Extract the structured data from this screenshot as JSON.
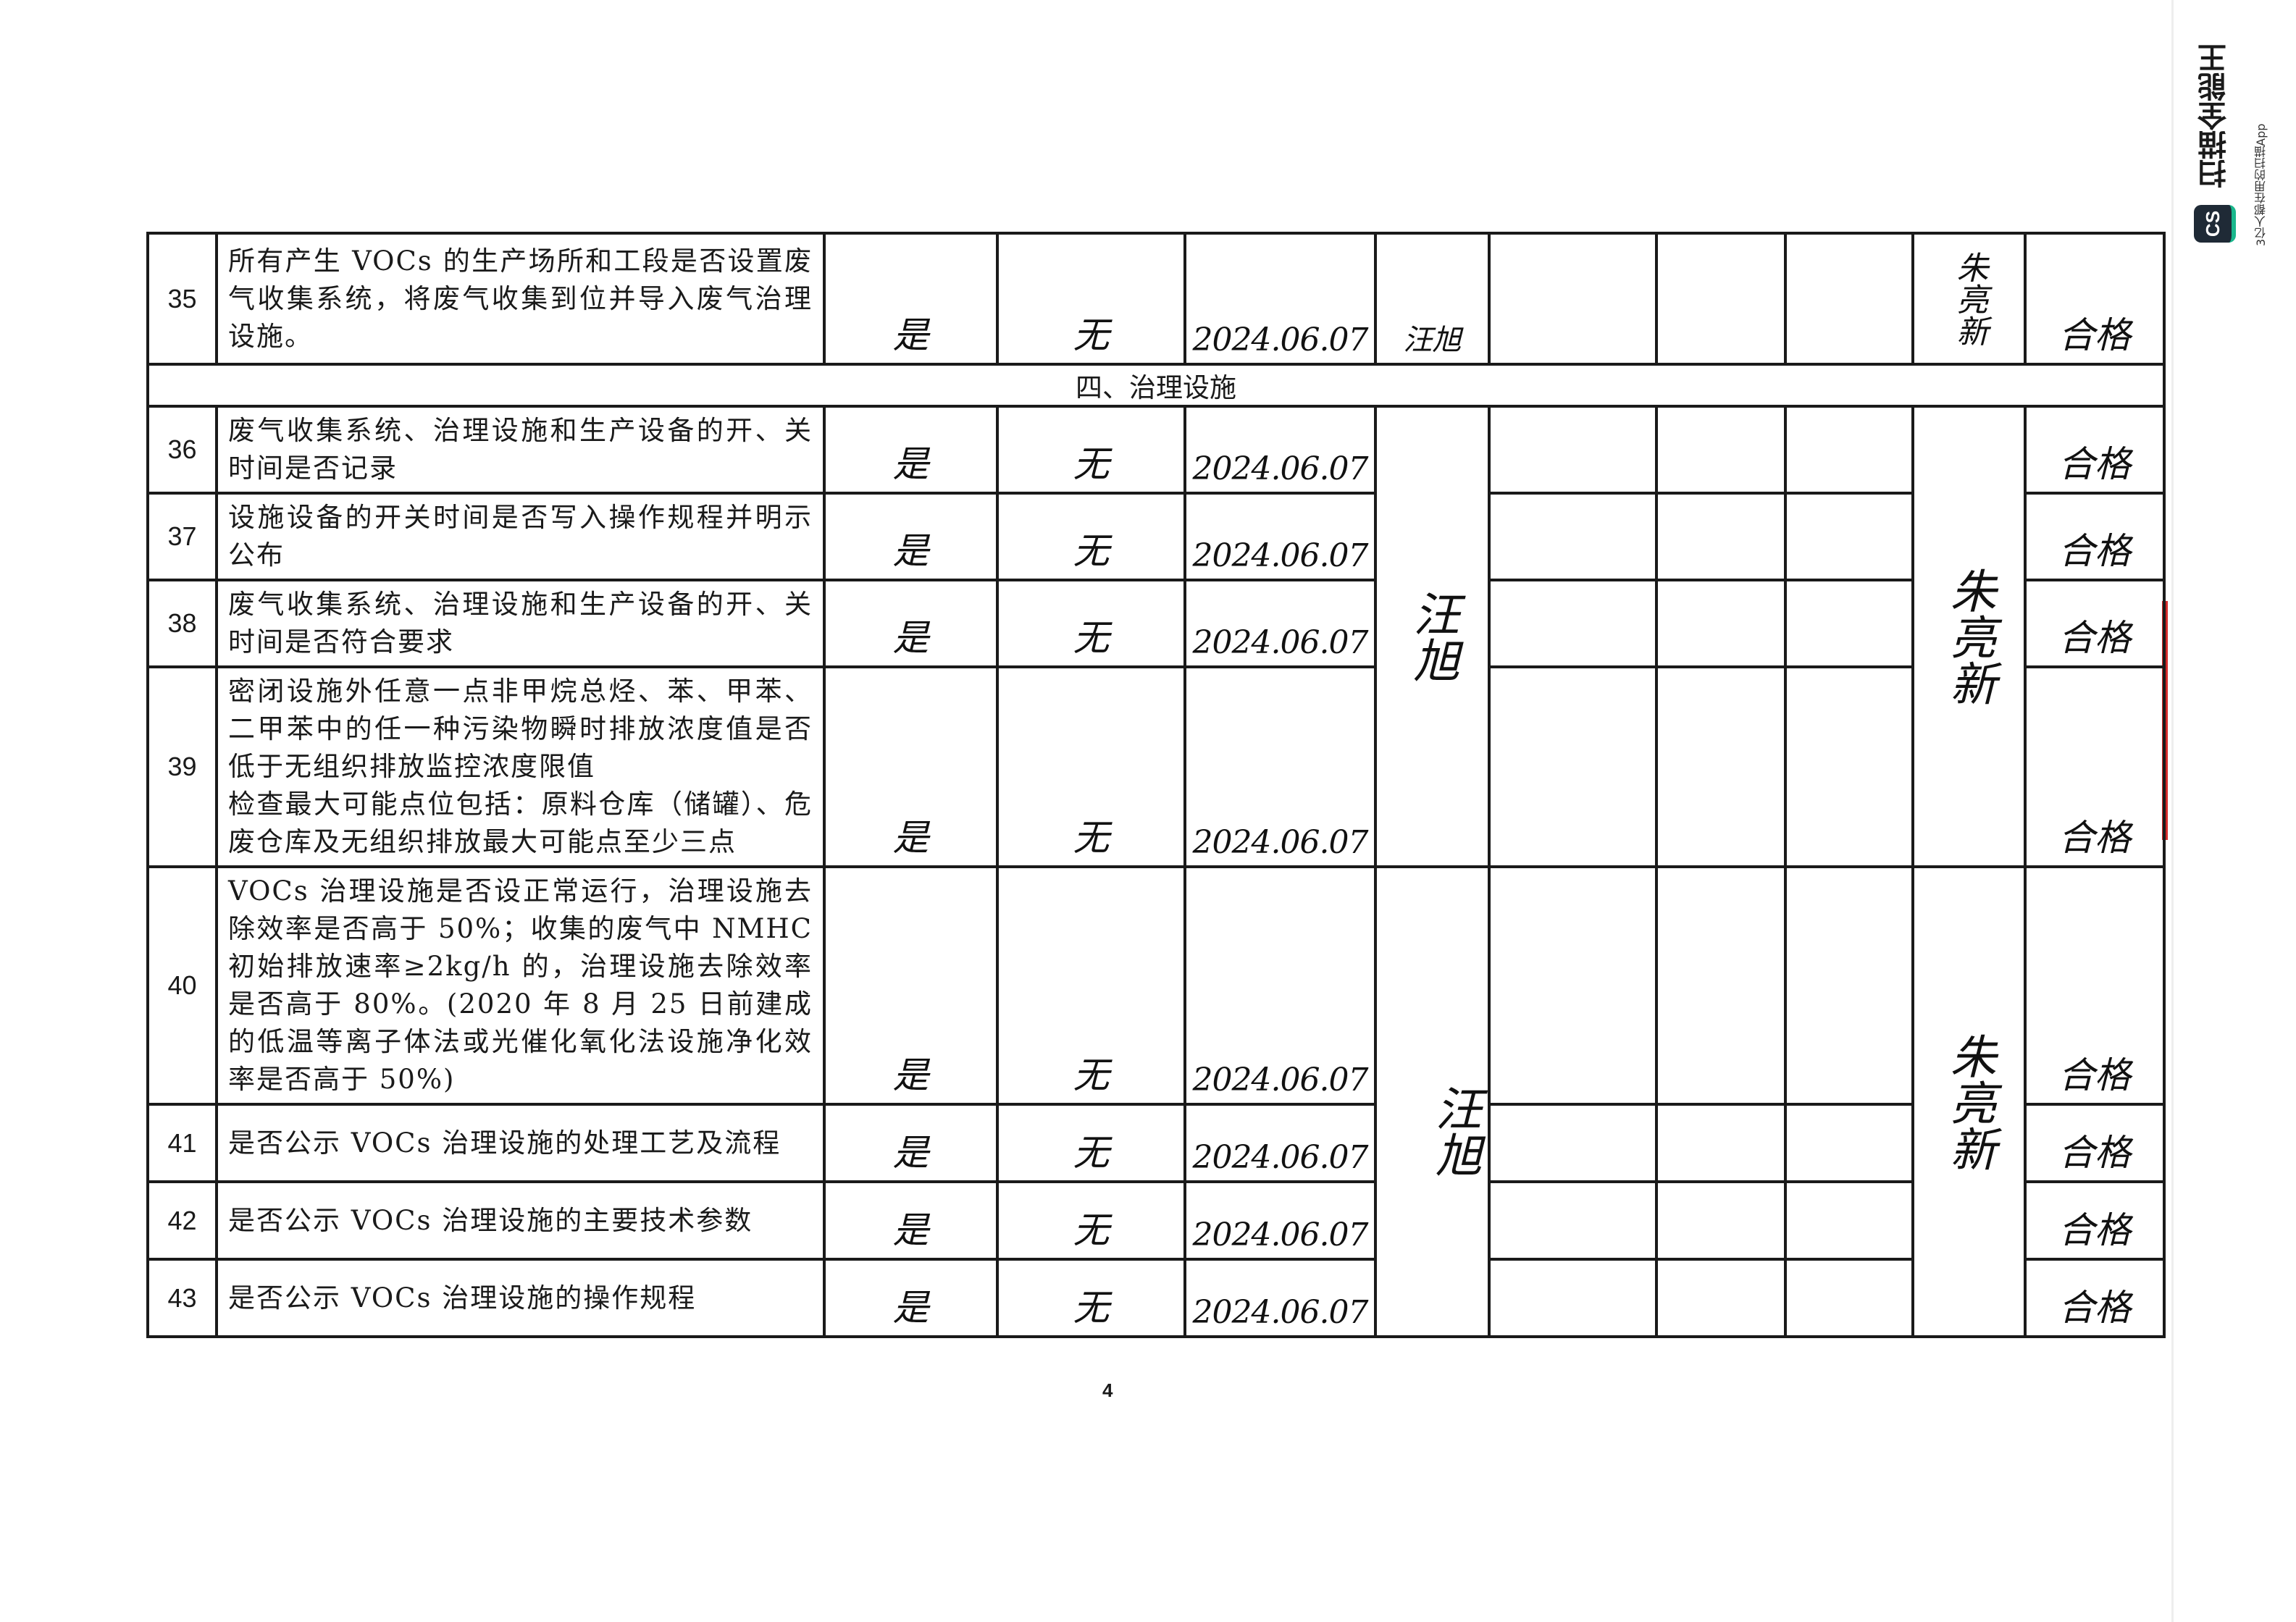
{
  "section_title": "四、治理设施",
  "rows": [
    {
      "no": "35",
      "item": "所有产生 VOCs 的生产场所和工段是否设置废气收集系统，将废气收集到位并导入废气治理设施。",
      "result": "是",
      "issue": "无",
      "date": "2024.06.07",
      "checker": "汪旭",
      "conclusion": "合格"
    },
    {
      "no": "36",
      "item": "废气收集系统、治理设施和生产设备的开、关时间是否记录",
      "result": "是",
      "issue": "无",
      "date": "2024.06.07",
      "conclusion": "合格"
    },
    {
      "no": "37",
      "item": "设施设备的开关时间是否写入操作规程并明示公布",
      "result": "是",
      "issue": "无",
      "date": "2024.06.07",
      "conclusion": "合格"
    },
    {
      "no": "38",
      "item": "废气收集系统、治理设施和生产设备的开、关时间是否符合要求",
      "result": "是",
      "issue": "无",
      "date": "2024.06.07",
      "conclusion": "合格"
    },
    {
      "no": "39",
      "item": "密闭设施外任意一点非甲烷总烃、苯、甲苯、二甲苯中的任一种污染物瞬时排放浓度值是否低于无组织排放监控浓度限值\n检查最大可能点位包括：原料仓库（储罐）、危废仓库及无组织排放最大可能点至少三点",
      "result": "是",
      "issue": "无",
      "date": "2024.06.07",
      "conclusion": "合格"
    },
    {
      "no": "40",
      "item": "VOCs 治理设施是否设正常运行，治理设施去除效率是否高于 50%；收集的废气中 NMHC 初始排放速率≥2kg/h 的，治理设施去除效率是否高于 80%。(2020 年 8 月 25 日前建成的低温等离子体法或光催化氧化法设施净化效率是否高于 50%)",
      "result": "是",
      "issue": "无",
      "date": "2024.06.07",
      "conclusion": "合格"
    },
    {
      "no": "41",
      "item": "是否公示 VOCs 治理设施的处理工艺及流程",
      "result": "是",
      "issue": "无",
      "date": "2024.06.07",
      "conclusion": "合格"
    },
    {
      "no": "42",
      "item": "是否公示 VOCs 治理设施的主要技术参数",
      "result": "是",
      "issue": "无",
      "date": "2024.06.07",
      "conclusion": "合格"
    },
    {
      "no": "43",
      "item": "是否公示 VOCs 治理设施的操作规程",
      "result": "是",
      "issue": "无",
      "date": "2024.06.07",
      "conclusion": "合格"
    }
  ],
  "checker_group_a": "汪旭",
  "checker_group_b": "汪旭",
  "signature_35": "朱亮新",
  "signature_a": "朱亮新",
  "signature_b": "朱亮新",
  "page_number": "4",
  "watermark": {
    "badge": "CS",
    "name": "扫描全能王",
    "tagline": "3亿人都在用的扫描App"
  }
}
